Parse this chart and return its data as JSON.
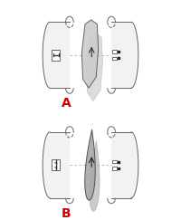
{
  "fig_width": 2.0,
  "fig_height": 2.43,
  "dpi": 100,
  "bg_color": "#ffffff",
  "label_A": "A",
  "label_B": "B",
  "label_color": "#cc0000",
  "label_fontsize": 10,
  "cyl_face": "#f2f2f2",
  "cyl_edge": "#666666",
  "filter_A_face": "#cccccc",
  "filter_B_face": "#aaaaaa",
  "shadow_A": "#b0b0b0",
  "shadow_B": "#888888",
  "dash_color": "#aaaaaa",
  "arrow_color": "#333333"
}
